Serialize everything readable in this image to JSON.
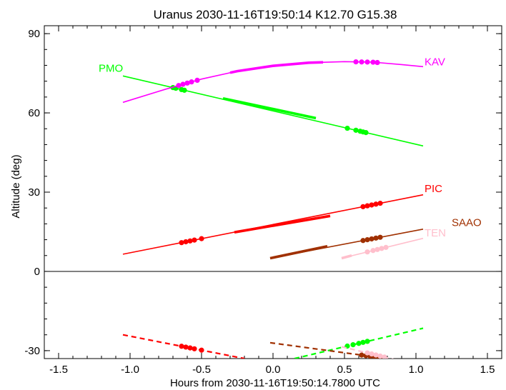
{
  "chart_data": {
    "type": "line",
    "title": "Uranus 2030-11-16T19:50:14  K12.70  G15.38",
    "xlabel": "Hours from 2030-11-16T19:50:14.7800 UTC",
    "ylabel": "Altitude (deg)",
    "xlim": [
      -1.6,
      1.6
    ],
    "ylim": [
      -33,
      93
    ],
    "xticks": [
      -1.5,
      -1.0,
      -0.5,
      0.0,
      0.5,
      1.0,
      1.5
    ],
    "xtick_labels": [
      "-1.5",
      "-1.0",
      "-0.5",
      "0.0",
      "0.5",
      "1.0",
      "1.5"
    ],
    "yticks": [
      -30,
      0,
      30,
      60,
      90
    ],
    "ytick_labels": [
      "-30",
      "0",
      "30",
      "60",
      "90"
    ],
    "zero_line": true,
    "grid": false,
    "legend": "inline labels at right end of curves",
    "series": [
      {
        "name": "PMO",
        "color": "#00ff00",
        "label_pos": [
          -1.22,
          75.5
        ],
        "solid": [
          [
            -1.05,
            74
          ],
          [
            1.05,
            47.5
          ]
        ],
        "thick": [
          [
            -0.35,
            65.5
          ],
          [
            0.3,
            58
          ]
        ],
        "dots": [
          -0.7,
          -0.68,
          -0.64,
          -0.62,
          0.52,
          0.58,
          0.61,
          0.63,
          0.65
        ],
        "dashed": [
          [
            0.15,
            -33
          ],
          [
            1.05,
            -21.5
          ]
        ],
        "dashed_dots": [
          0.52,
          0.56,
          0.6,
          0.63,
          0.66
        ]
      },
      {
        "name": "KAV",
        "color": "#ff00ff",
        "label_pos": [
          1.06,
          78
        ],
        "curve": [
          [
            -1.05,
            64
          ],
          [
            -0.75,
            69
          ],
          [
            -0.5,
            72.8
          ],
          [
            -0.25,
            75.8
          ],
          [
            0.0,
            77.8
          ],
          [
            0.25,
            79
          ],
          [
            0.5,
            79.4
          ],
          [
            0.7,
            79.2
          ],
          [
            0.9,
            78.3
          ],
          [
            1.05,
            77.5
          ]
        ],
        "thick": [
          [
            -0.3,
            73.5
          ],
          [
            0.35,
            79
          ]
        ],
        "dots": [
          -0.66,
          -0.63,
          -0.6,
          -0.57,
          -0.53,
          0.58,
          0.62,
          0.66,
          0.7,
          0.73
        ]
      },
      {
        "name": "PIC",
        "color": "#ff0000",
        "label_pos": [
          1.06,
          30
        ],
        "solid": [
          [
            -1.05,
            6.5
          ],
          [
            1.05,
            29
          ]
        ],
        "thick": [
          [
            -0.27,
            14.8
          ],
          [
            0.4,
            21
          ]
        ],
        "dots": [
          -0.64,
          -0.61,
          -0.58,
          -0.55,
          -0.5,
          0.63,
          0.66,
          0.69,
          0.72,
          0.75
        ],
        "dashed": [
          [
            -1.05,
            -24
          ],
          [
            -0.2,
            -33
          ]
        ],
        "dashed_dots": [
          -0.64,
          -0.61,
          -0.58,
          -0.55,
          -0.5
        ]
      },
      {
        "name": "SAAO",
        "color": "#a03000",
        "label_pos": [
          1.25,
          17.2
        ],
        "solid": [
          [
            -0.02,
            5
          ],
          [
            1.05,
            16
          ]
        ],
        "thick": [
          [
            -0.02,
            5
          ],
          [
            0.38,
            9.5
          ]
        ],
        "dots": [
          0.63,
          0.66,
          0.69,
          0.72,
          0.75
        ],
        "dashed": [
          [
            -0.02,
            -27
          ],
          [
            0.8,
            -33
          ]
        ],
        "dashed_dots": [
          0.62,
          0.65,
          0.68,
          0.71,
          0.74
        ]
      },
      {
        "name": "TEN",
        "color": "#ffbfcc",
        "label_pos": [
          1.06,
          13.2
        ],
        "solid": [
          [
            0.48,
            5
          ],
          [
            1.05,
            12.5
          ]
        ],
        "thick": [
          [
            0.48,
            5
          ],
          [
            0.55,
            6
          ]
        ],
        "dots": [
          0.66,
          0.7,
          0.73,
          0.76,
          0.79
        ],
        "dashed": [
          [
            0.48,
            -28.5
          ],
          [
            0.9,
            -34
          ]
        ],
        "dashed_dots": [
          0.66,
          0.69,
          0.72,
          0.75,
          0.78
        ]
      }
    ]
  }
}
